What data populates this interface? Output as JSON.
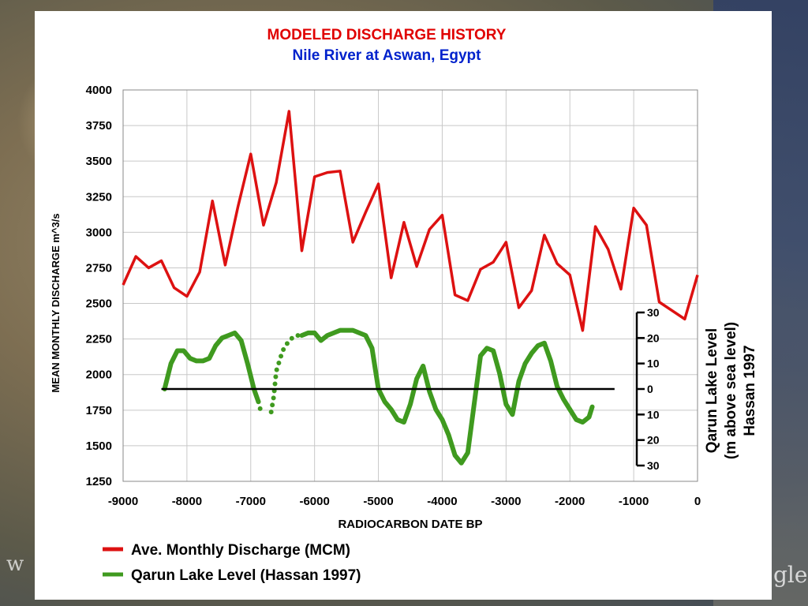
{
  "background": {
    "watermark_left": "w",
    "watermark_right": "gle"
  },
  "chart_data": {
    "type": "line",
    "title": "MODELED DISCHARGE HISTORY",
    "subtitle": "Nile River at Aswan, Egypt",
    "title_color": "#e00000",
    "subtitle_color": "#0022cc",
    "xlabel": "RADIOCARBON DATE BP",
    "ylabel": "MEAN MONTHLY DISCHARGE m^3/s",
    "xlim": [
      -9000,
      0
    ],
    "ylim": [
      1250,
      4000
    ],
    "grid": true,
    "x_ticks": [
      -9000,
      -8000,
      -7000,
      -6000,
      -5000,
      -4000,
      -3000,
      -2000,
      -1000,
      0
    ],
    "x_tick_labels": [
      "-9000",
      "-8000",
      "-7000",
      "-6000",
      "-5000",
      "-4000",
      "-3000",
      "-2000",
      "-1000",
      "0"
    ],
    "y_ticks": [
      1250,
      1500,
      1750,
      2000,
      2250,
      2500,
      2750,
      3000,
      3250,
      3500,
      3750,
      4000
    ],
    "y_tick_labels": [
      "1250",
      "1500",
      "1750",
      "2000",
      "2250",
      "2500",
      "2750",
      "3000",
      "3250",
      "3500",
      "3750",
      "4000"
    ],
    "secondary_axis": {
      "label_lines": [
        "Qarun Lake Level",
        "(m above sea level)",
        "Hassan 1997"
      ],
      "ticks": [
        30,
        20,
        10,
        0,
        -10,
        -20,
        -30
      ],
      "tick_labels": [
        "30",
        "20",
        "10",
        "0",
        "10",
        "20",
        "30"
      ],
      "zero_line_x_range": [
        -8400,
        -1300
      ]
    },
    "series": [
      {
        "name": "Ave. Monthly Discharge (MCM)",
        "color": "#dd1111",
        "axis": "primary",
        "x": [
          -9000,
          -8800,
          -8600,
          -8400,
          -8200,
          -8000,
          -7800,
          -7600,
          -7400,
          -7200,
          -7000,
          -6800,
          -6600,
          -6400,
          -6200,
          -6000,
          -5800,
          -5600,
          -5400,
          -5200,
          -5000,
          -4800,
          -4600,
          -4400,
          -4200,
          -4000,
          -3800,
          -3600,
          -3400,
          -3200,
          -3000,
          -2800,
          -2600,
          -2400,
          -2200,
          -2000,
          -1800,
          -1600,
          -1400,
          -1200,
          -1000,
          -800,
          -600,
          -400,
          -200,
          0
        ],
        "y": [
          2630,
          2830,
          2750,
          2800,
          2610,
          2550,
          2720,
          3220,
          2770,
          3180,
          3550,
          3050,
          3350,
          3850,
          2870,
          3390,
          3420,
          3430,
          2930,
          3140,
          3340,
          2680,
          3070,
          2760,
          3020,
          3120,
          2560,
          2520,
          2740,
          2790,
          2930,
          2470,
          2590,
          2980,
          2780,
          2700,
          2310,
          3040,
          2880,
          2600,
          3170,
          3050,
          2510,
          2450,
          2390,
          2700
        ]
      },
      {
        "name": "Qarun Lake Level (Hassan 1997)",
        "color": "#3f9a1f",
        "axis": "secondary",
        "segments": [
          {
            "style": "solid",
            "x": [
              -8350,
              -8250,
              -8150,
              -8050,
              -7950,
              -7850,
              -7750,
              -7650,
              -7550,
              -7450,
              -7350,
              -7250,
              -7150,
              -7050,
              -6950,
              -6880
            ],
            "y": [
              0,
              10,
              15,
              15,
              12,
              11,
              11,
              12,
              17,
              20,
              21,
              22,
              19,
              10,
              0,
              -5
            ]
          },
          {
            "style": "dotted",
            "x": [
              -6880,
              -6840,
              -6800
            ],
            "y": [
              -5,
              -9,
              -9
            ]
          },
          {
            "style": "dotted",
            "x": [
              -6680,
              -6640,
              -6600,
              -6500,
              -6400,
              -6300,
              -6200
            ],
            "y": [
              -9,
              -3,
              7,
              15,
              19,
              21,
              21
            ]
          },
          {
            "style": "solid",
            "x": [
              -6200,
              -6100,
              -6000,
              -5900,
              -5800,
              -5700,
              -5600,
              -5500,
              -5400,
              -5300,
              -5200,
              -5100,
              -5000,
              -4900,
              -4800,
              -4700,
              -4600,
              -4500,
              -4400,
              -4300,
              -4200,
              -4100,
              -4000,
              -3900,
              -3800,
              -3700,
              -3600,
              -3500,
              -3400,
              -3300,
              -3200,
              -3100,
              -3000,
              -2900,
              -2800,
              -2700,
              -2600,
              -2500,
              -2400,
              -2300,
              -2200,
              -2100,
              -2000,
              -1900,
              -1800,
              -1700,
              -1650
            ],
            "y": [
              21,
              22,
              22,
              19,
              21,
              22,
              23,
              23,
              23,
              22,
              21,
              16,
              0,
              -5,
              -8,
              -12,
              -13,
              -6,
              4,
              9,
              -1,
              -8,
              -12,
              -18,
              -26,
              -29,
              -25,
              -6,
              13,
              16,
              15,
              6,
              -6,
              -10,
              3,
              10,
              14,
              17,
              18,
              11,
              1,
              -4,
              -8,
              -12,
              -13,
              -11,
              -7
            ]
          }
        ]
      }
    ],
    "legend": {
      "placement": "bottom-left",
      "entries": [
        "Ave. Monthly Discharge (MCM)",
        "Qarun Lake Level (Hassan 1997)"
      ]
    }
  }
}
